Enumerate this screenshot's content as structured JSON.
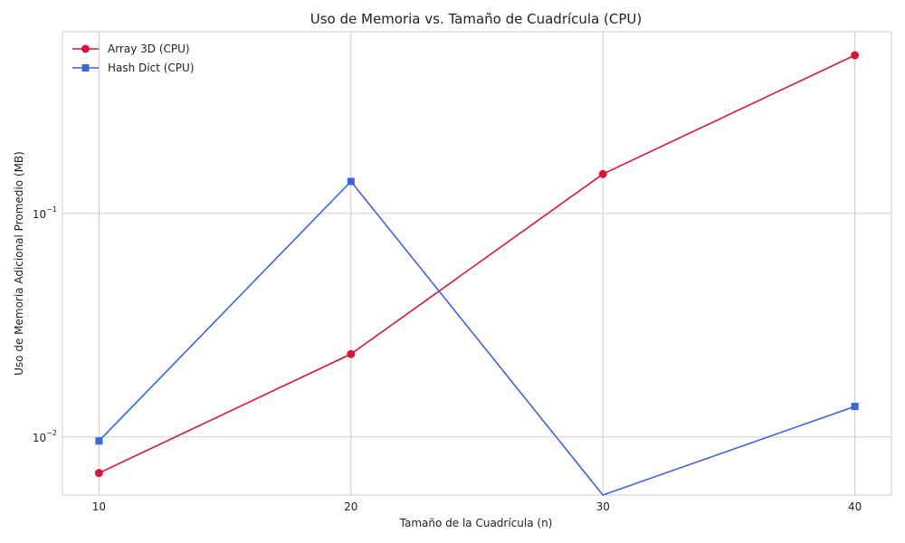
{
  "chart_data": {
    "type": "line",
    "title": "Uso de Memoria vs. Tamaño de Cuadrícula (CPU)",
    "xlabel": "Tamaño de la Cuadrícula (n)",
    "ylabel": "Uso de Memoria Adicional Promedio (MB)",
    "x": [
      10,
      20,
      30,
      40
    ],
    "x_ticks": [
      "10",
      "20",
      "30",
      "40"
    ],
    "xlim": [
      8.55,
      41.45
    ],
    "y_scale": "log",
    "ylim": [
      0.0055,
      0.65
    ],
    "y_ticks": [
      {
        "base": "10",
        "exp": "−2",
        "value": 0.01
      },
      {
        "base": "10",
        "exp": "−1",
        "value": 0.1
      }
    ],
    "grid": true,
    "legend_position": "top-left",
    "series": [
      {
        "name": "Array 3D (CPU)",
        "color": "#d6163c",
        "marker": "circle",
        "values": [
          0.0069,
          0.0235,
          0.15,
          0.51
        ]
      },
      {
        "name": "Hash Dict (CPU)",
        "color": "#3e63dd",
        "marker": "square",
        "values": [
          0.0096,
          0.139,
          0,
          0.0137
        ]
      }
    ]
  }
}
